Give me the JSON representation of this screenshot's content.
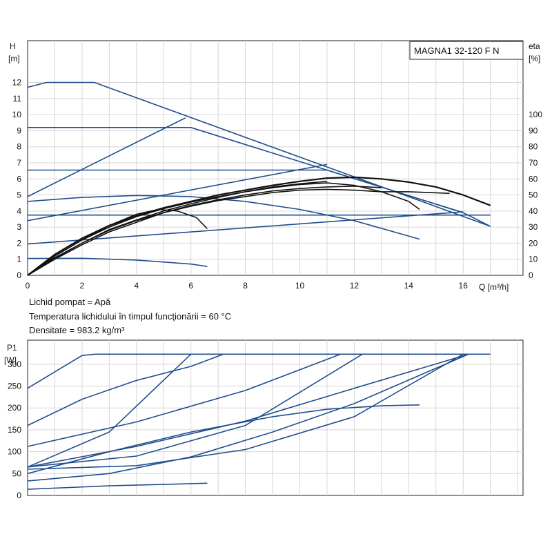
{
  "chart_data": [
    {
      "type": "line",
      "title": "MAGNA1 32-120 F N",
      "ylabel_top": "H",
      "ylabel_unit": "[m]",
      "y2label_top": "eta",
      "y2label_unit": "[%]",
      "xlabel": "Q [m³/h]",
      "xlim": [
        0,
        18.2
      ],
      "ylim": [
        0,
        14.6
      ],
      "y2lim": [
        0,
        146
      ],
      "xticks": [
        0,
        2,
        4,
        6,
        8,
        10,
        12,
        14,
        16
      ],
      "yticks": [
        0,
        1,
        2,
        3,
        4,
        5,
        6,
        7,
        8,
        9,
        10,
        11,
        12
      ],
      "y2ticks": [
        0,
        10,
        20,
        30,
        40,
        50,
        60,
        70,
        80,
        90,
        100
      ],
      "grid": true,
      "series": [
        {
          "color": "#1f4e8c",
          "axis": "left",
          "points": [
            [
              0,
              11.7
            ],
            [
              0.7,
              12
            ],
            [
              2.45,
              12
            ],
            [
              17,
              3.05
            ]
          ]
        },
        {
          "color": "#1f4e8c",
          "axis": "left",
          "points": [
            [
              0,
              9.2
            ],
            [
              6,
              9.2
            ],
            [
              16,
              3.9
            ],
            [
              17,
              3.05
            ]
          ]
        },
        {
          "color": "#1f4e8c",
          "axis": "left",
          "points": [
            [
              0,
              6.55
            ],
            [
              11,
              6.55
            ],
            [
              16,
              3.9
            ]
          ]
        },
        {
          "color": "#1f4e8c",
          "axis": "left",
          "points": [
            [
              0,
              3.75
            ],
            [
              17,
              3.75
            ]
          ]
        },
        {
          "color": "#1f4e8c",
          "axis": "left",
          "points": [
            [
              0,
              4.9
            ],
            [
              5.8,
              9.8
            ]
          ]
        },
        {
          "color": "#1f4e8c",
          "axis": "left",
          "points": [
            [
              0,
              3.4
            ],
            [
              11,
              6.9
            ]
          ]
        },
        {
          "color": "#1f4e8c",
          "axis": "left",
          "points": [
            [
              0,
              1.95
            ],
            [
              16,
              3.95
            ]
          ]
        },
        {
          "color": "#1f4e8c",
          "axis": "left",
          "points": [
            [
              0,
              4.6
            ],
            [
              2,
              4.85
            ],
            [
              4,
              4.97
            ],
            [
              6,
              4.9
            ],
            [
              8,
              4.6
            ],
            [
              10,
              4.1
            ],
            [
              12,
              3.4
            ],
            [
              14.4,
              2.25
            ]
          ]
        },
        {
          "color": "#1f4e8c",
          "axis": "left",
          "points": [
            [
              0,
              1.05
            ],
            [
              2,
              1.06
            ],
            [
              4,
              0.95
            ],
            [
              6,
              0.7
            ],
            [
              6.6,
              0.55
            ]
          ]
        },
        {
          "color": "#111111",
          "axis": "right",
          "width": 2.2,
          "points": [
            [
              0,
              0
            ],
            [
              1,
              13
            ],
            [
              2,
              23
            ],
            [
              3,
              31
            ],
            [
              4,
              37
            ],
            [
              5,
              42
            ],
            [
              6,
              46
            ],
            [
              7,
              50
            ],
            [
              8,
              53
            ],
            [
              9,
              56
            ],
            [
              10,
              58.5
            ],
            [
              11,
              60.5
            ],
            [
              12,
              61
            ],
            [
              13,
              60
            ],
            [
              14,
              58
            ],
            [
              15,
              55
            ],
            [
              16,
              50
            ],
            [
              17,
              43.5
            ]
          ]
        },
        {
          "color": "#111111",
          "axis": "right",
          "points": [
            [
              0,
              0
            ],
            [
              1,
              12
            ],
            [
              2,
              22
            ],
            [
              3,
              30
            ],
            [
              4,
              36.5
            ],
            [
              5,
              41.5
            ],
            [
              6,
              45.5
            ],
            [
              7,
              49
            ],
            [
              8,
              52
            ],
            [
              9,
              54.5
            ],
            [
              10,
              56.5
            ],
            [
              11,
              57.5
            ],
            [
              12,
              56
            ],
            [
              13,
              52
            ],
            [
              14,
              46
            ],
            [
              14.4,
              41
            ]
          ]
        },
        {
          "color": "#111111",
          "axis": "right",
          "points": [
            [
              0,
              0
            ],
            [
              1,
              11
            ],
            [
              2,
              20
            ],
            [
              3,
              28
            ],
            [
              4,
              34
            ],
            [
              5,
              39
            ],
            [
              6,
              43
            ],
            [
              7,
              46.5
            ],
            [
              8,
              49
            ],
            [
              9,
              51.5
            ],
            [
              10,
              53
            ],
            [
              11,
              53.5
            ],
            [
              12,
              53
            ],
            [
              13,
              52
            ],
            [
              14,
              52
            ],
            [
              15.5,
              51
            ]
          ]
        },
        {
          "color": "#111111",
          "axis": "right",
          "points": [
            [
              0,
              0
            ],
            [
              1,
              10
            ],
            [
              2,
              19
            ],
            [
              3,
              27
            ],
            [
              4,
              33
            ],
            [
              5,
              39
            ],
            [
              6,
              43.5
            ],
            [
              7,
              47
            ],
            [
              8,
              50
            ],
            [
              9,
              52.5
            ],
            [
              10,
              54
            ],
            [
              11,
              55
            ],
            [
              12,
              55.5
            ],
            [
              13,
              54.5
            ]
          ]
        },
        {
          "color": "#111111",
          "axis": "right",
          "points": [
            [
              0,
              0
            ],
            [
              1,
              10.5
            ],
            [
              2,
              20
            ],
            [
              3,
              28.5
            ],
            [
              4,
              34.5
            ],
            [
              5,
              40
            ],
            [
              6,
              44.5
            ],
            [
              7,
              48.5
            ],
            [
              8,
              52
            ],
            [
              9,
              55
            ],
            [
              10,
              57
            ],
            [
              11,
              58.5
            ]
          ]
        },
        {
          "color": "#111111",
          "axis": "right",
          "points": [
            [
              0,
              0
            ],
            [
              1,
              12
            ],
            [
              2,
              22
            ],
            [
              3,
              31
            ],
            [
              4,
              38
            ],
            [
              4.8,
              41
            ],
            [
              5.5,
              40
            ],
            [
              6.2,
              36
            ],
            [
              6.6,
              29
            ]
          ]
        }
      ],
      "annotations": []
    },
    {
      "type": "line",
      "ylabel_top": "P1",
      "ylabel_unit": "[W]",
      "xlim": [
        0,
        18.2
      ],
      "ylim": [
        0,
        355
      ],
      "yticks": [
        0,
        50,
        100,
        150,
        200,
        250,
        300
      ],
      "grid": true,
      "series": [
        {
          "color": "#1f4e8c",
          "points": [
            [
              0,
              245
            ],
            [
              2,
              320
            ],
            [
              2.5,
              323
            ],
            [
              17,
              323
            ]
          ]
        },
        {
          "color": "#1f4e8c",
          "points": [
            [
              0,
              160
            ],
            [
              2,
              220
            ],
            [
              4,
              263
            ],
            [
              6,
              295
            ],
            [
              7.2,
              323
            ]
          ]
        },
        {
          "color": "#1f4e8c",
          "points": [
            [
              0,
              65
            ],
            [
              3,
              145
            ],
            [
              6,
              323
            ]
          ]
        },
        {
          "color": "#1f4e8c",
          "points": [
            [
              0,
              112
            ],
            [
              4,
              168
            ],
            [
              8,
              240
            ],
            [
              11.5,
              323
            ]
          ]
        },
        {
          "color": "#1f4e8c",
          "points": [
            [
              0,
              65
            ],
            [
              4,
              90
            ],
            [
              8,
              160
            ],
            [
              12.3,
              323
            ]
          ]
        },
        {
          "color": "#1f4e8c",
          "points": [
            [
              0,
              65
            ],
            [
              4,
              112
            ],
            [
              8,
              170
            ],
            [
              12,
              245
            ],
            [
              16.2,
              323
            ]
          ]
        },
        {
          "color": "#1f4e8c",
          "points": [
            [
              0,
              60
            ],
            [
              4,
              68
            ],
            [
              8,
              105
            ],
            [
              12,
              180
            ],
            [
              16,
              323
            ]
          ]
        },
        {
          "color": "#1f4e8c",
          "points": [
            [
              0,
              33
            ],
            [
              3,
              50
            ],
            [
              6,
              88
            ],
            [
              9,
              145
            ],
            [
              12,
              210
            ],
            [
              16.2,
              323
            ]
          ]
        },
        {
          "color": "#1f4e8c",
          "points": [
            [
              0,
              50
            ],
            [
              3,
              100
            ],
            [
              6,
              145
            ],
            [
              9,
              180
            ],
            [
              11,
              197
            ],
            [
              13,
              205
            ],
            [
              14.4,
              207
            ]
          ]
        },
        {
          "color": "#1f4e8c",
          "points": [
            [
              0,
              14
            ],
            [
              3,
              22
            ],
            [
              6.6,
              28
            ]
          ]
        }
      ]
    }
  ],
  "notes": {
    "fluid": "Lichid pompat = Apă",
    "temperature": "Temperatura lichidului în timpul funcţionării = 60 °C",
    "density": "Densitate = 983.2 kg/m³"
  }
}
